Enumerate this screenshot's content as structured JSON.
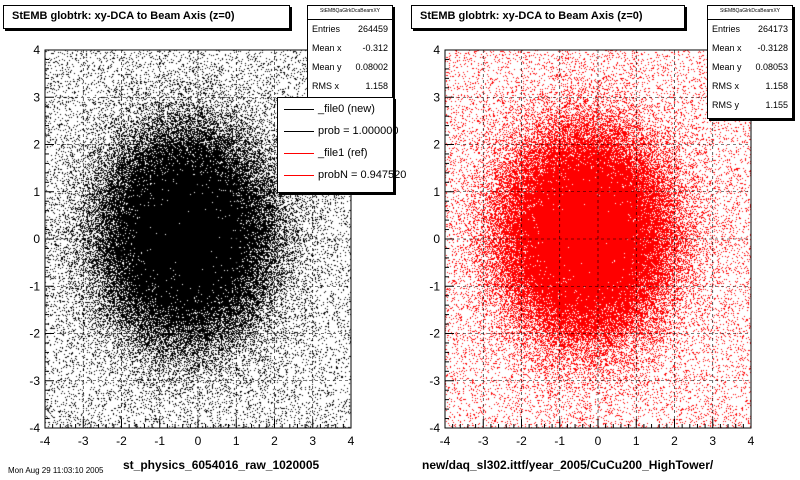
{
  "footer": "Mon Aug 29 11:03:10 2005",
  "legend": {
    "entries": [
      {
        "label": "_file0 (new)",
        "color": "#000000"
      },
      {
        "label": "prob = 1.000000",
        "color": "#000000"
      },
      {
        "label": "_file1 (ref)",
        "color": "#ff0000"
      },
      {
        "label": "probN = 0.947520",
        "color": "#ff0000"
      }
    ]
  },
  "chart_data": [
    {
      "type": "scatter",
      "title": "StEMB globtrk: xy-DCA to Beam Axis (z=0)",
      "xlabel": "st_physics_6054016_raw_1020005",
      "ylabel": "",
      "xlim": [
        -4,
        4
      ],
      "ylim": [
        -4,
        4
      ],
      "x_ticks": [
        "-4",
        "-3",
        "-2",
        "-1",
        "0",
        "1",
        "2",
        "3",
        "4"
      ],
      "y_ticks": [
        "-4",
        "-3",
        "-2",
        "-1",
        "0",
        "1",
        "2",
        "3",
        "4"
      ],
      "grid": true,
      "color": "#000000",
      "stats": {
        "name": "StEMBQaGlrkDcaBeamXY",
        "rows": [
          {
            "key": "Entries",
            "value": "264459"
          },
          {
            "key": "Mean x",
            "value": "-0.312"
          },
          {
            "key": "Mean y",
            "value": "0.08002"
          },
          {
            "key": "RMS x",
            "value": "1.158"
          }
        ]
      },
      "distribution": {
        "entries": 264459,
        "mean_x": -0.312,
        "mean_y": 0.08002,
        "rms_x": 1.158
      }
    },
    {
      "type": "scatter",
      "title": "StEMB globtrk: xy-DCA to Beam Axis (z=0)",
      "xlabel": "new/daq_sl302.ittf/year_2005/CuCu200_HighTower/",
      "ylabel": "",
      "xlim": [
        -4,
        4
      ],
      "ylim": [
        -4,
        4
      ],
      "x_ticks": [
        "-4",
        "-3",
        "-2",
        "-1",
        "0",
        "1",
        "2",
        "3",
        "4"
      ],
      "y_ticks": [
        "-4",
        "-3",
        "-2",
        "-1",
        "0",
        "1",
        "2",
        "3",
        "4"
      ],
      "grid": true,
      "color": "#ff0000",
      "stats": {
        "name": "StEMBQaGlrkDcaBeamXY",
        "rows": [
          {
            "key": "Entries",
            "value": "264173"
          },
          {
            "key": "Mean x",
            "value": "-0.3128"
          },
          {
            "key": "Mean y",
            "value": "0.08053"
          },
          {
            "key": "RMS x",
            "value": "1.158"
          },
          {
            "key": "RMS y",
            "value": "1.155"
          }
        ]
      },
      "distribution": {
        "entries": 264173,
        "mean_x": -0.3128,
        "mean_y": 0.08053,
        "rms_x": 1.158,
        "rms_y": 1.155
      }
    }
  ]
}
